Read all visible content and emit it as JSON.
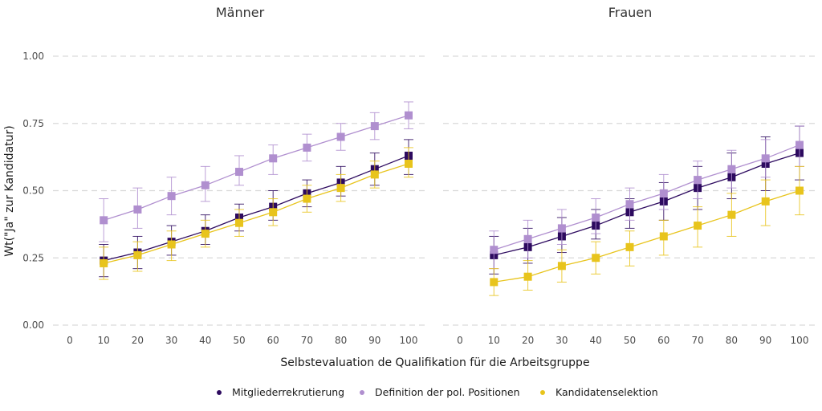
{
  "chart_data": {
    "type": "line",
    "facets": [
      "Männer",
      "Frauen"
    ],
    "xlabel": "Selbstevaluation de Qualifikation für die Arbeitsgruppe",
    "ylabel": "Wt(\"Ja\" zur Kandidatur)",
    "x_ticks": [
      0,
      10,
      20,
      30,
      40,
      50,
      60,
      70,
      80,
      90,
      100
    ],
    "y_ticks": [
      "0.00",
      "0.25",
      "0.50",
      "0.75",
      "1.00"
    ],
    "xlim": [
      0,
      100
    ],
    "ylim": [
      0,
      1
    ],
    "grid": true,
    "legend_position": "bottom",
    "x": [
      10,
      20,
      30,
      40,
      50,
      60,
      70,
      80,
      90,
      100
    ],
    "series": [
      {
        "name": "Mitgliederrekrutierung",
        "color": "#2d0a5f",
        "panels": [
          {
            "values": [
              0.24,
              0.27,
              0.31,
              0.35,
              0.4,
              0.44,
              0.49,
              0.53,
              0.58,
              0.63
            ],
            "lower": [
              0.18,
              0.21,
              0.26,
              0.3,
              0.35,
              0.39,
              0.44,
              0.48,
              0.52,
              0.56
            ],
            "upper": [
              0.3,
              0.33,
              0.37,
              0.41,
              0.45,
              0.5,
              0.54,
              0.59,
              0.64,
              0.69
            ]
          },
          {
            "values": [
              0.26,
              0.29,
              0.33,
              0.37,
              0.42,
              0.46,
              0.51,
              0.55,
              0.6,
              0.64
            ],
            "lower": [
              0.19,
              0.23,
              0.27,
              0.32,
              0.36,
              0.39,
              0.43,
              0.47,
              0.5,
              0.54
            ],
            "upper": [
              0.33,
              0.36,
              0.4,
              0.43,
              0.47,
              0.53,
              0.59,
              0.64,
              0.7,
              0.74
            ]
          }
        ]
      },
      {
        "name": "Definition der pol. Positionen",
        "color": "#b08fcf",
        "panels": [
          {
            "values": [
              0.39,
              0.43,
              0.48,
              0.52,
              0.57,
              0.62,
              0.66,
              0.7,
              0.74,
              0.78
            ],
            "lower": [
              0.31,
              0.36,
              0.41,
              0.46,
              0.52,
              0.56,
              0.61,
              0.65,
              0.69,
              0.73
            ],
            "upper": [
              0.47,
              0.51,
              0.55,
              0.59,
              0.63,
              0.67,
              0.71,
              0.75,
              0.79,
              0.83
            ]
          },
          {
            "values": [
              0.28,
              0.32,
              0.36,
              0.4,
              0.45,
              0.49,
              0.54,
              0.58,
              0.62,
              0.67
            ],
            "lower": [
              0.21,
              0.25,
              0.3,
              0.34,
              0.39,
              0.43,
              0.47,
              0.51,
              0.55,
              0.59
            ],
            "upper": [
              0.35,
              0.39,
              0.43,
              0.47,
              0.51,
              0.56,
              0.61,
              0.65,
              0.69,
              0.74
            ]
          }
        ]
      },
      {
        "name": "Kandidatenselektion",
        "color": "#e8c41c",
        "panels": [
          {
            "values": [
              0.23,
              0.26,
              0.3,
              0.34,
              0.38,
              0.42,
              0.47,
              0.51,
              0.56,
              0.6
            ],
            "lower": [
              0.17,
              0.2,
              0.24,
              0.29,
              0.33,
              0.37,
              0.42,
              0.46,
              0.51,
              0.55
            ],
            "upper": [
              0.29,
              0.31,
              0.35,
              0.39,
              0.43,
              0.47,
              0.52,
              0.56,
              0.61,
              0.66
            ]
          },
          {
            "values": [
              0.16,
              0.18,
              0.22,
              0.25,
              0.29,
              0.33,
              0.37,
              0.41,
              0.46,
              0.5
            ],
            "lower": [
              0.11,
              0.13,
              0.16,
              0.19,
              0.22,
              0.26,
              0.29,
              0.33,
              0.37,
              0.41
            ],
            "upper": [
              0.21,
              0.24,
              0.28,
              0.31,
              0.35,
              0.39,
              0.44,
              0.49,
              0.54,
              0.59
            ]
          }
        ]
      }
    ]
  }
}
